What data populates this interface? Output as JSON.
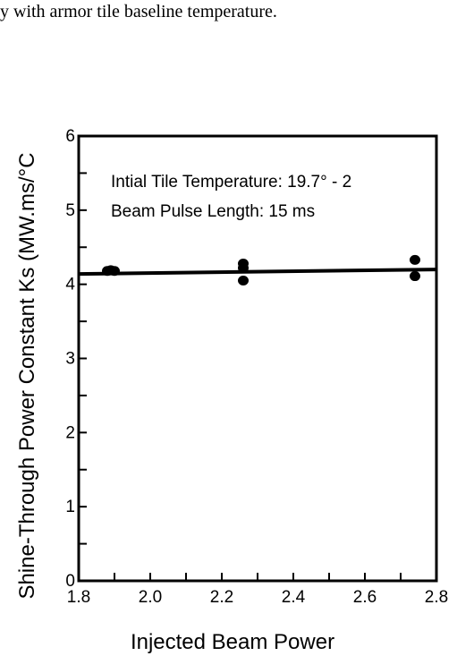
{
  "caption": "y with armor tile baseline temperature.",
  "chart_data": {
    "type": "scatter",
    "xlabel": "Injected Beam Power",
    "ylabel": "Shine-Through Power Constant Ks (MW.ms/°C",
    "xlim": [
      1.8,
      2.8
    ],
    "ylim": [
      0,
      6
    ],
    "x_ticks": [
      "1.8",
      "2.0",
      "2.2",
      "2.4",
      "2.6",
      "2.8"
    ],
    "y_ticks": [
      "0",
      "1",
      "2",
      "3",
      "4",
      "5",
      "6"
    ],
    "annotations": [
      "Intial Tile Temperature:  19.7° - 2",
      "Beam Pulse Length:  15 ms"
    ],
    "points": [
      {
        "x": 1.88,
        "y": 4.18
      },
      {
        "x": 1.89,
        "y": 4.19
      },
      {
        "x": 1.9,
        "y": 4.18
      },
      {
        "x": 2.26,
        "y": 4.28
      },
      {
        "x": 2.26,
        "y": 4.22
      },
      {
        "x": 2.26,
        "y": 4.05
      },
      {
        "x": 2.74,
        "y": 4.33
      },
      {
        "x": 2.74,
        "y": 4.11
      }
    ],
    "fit_line": {
      "x": [
        1.8,
        2.8
      ],
      "y": [
        4.14,
        4.2
      ]
    },
    "grid": false,
    "marker_color": "#000000"
  }
}
